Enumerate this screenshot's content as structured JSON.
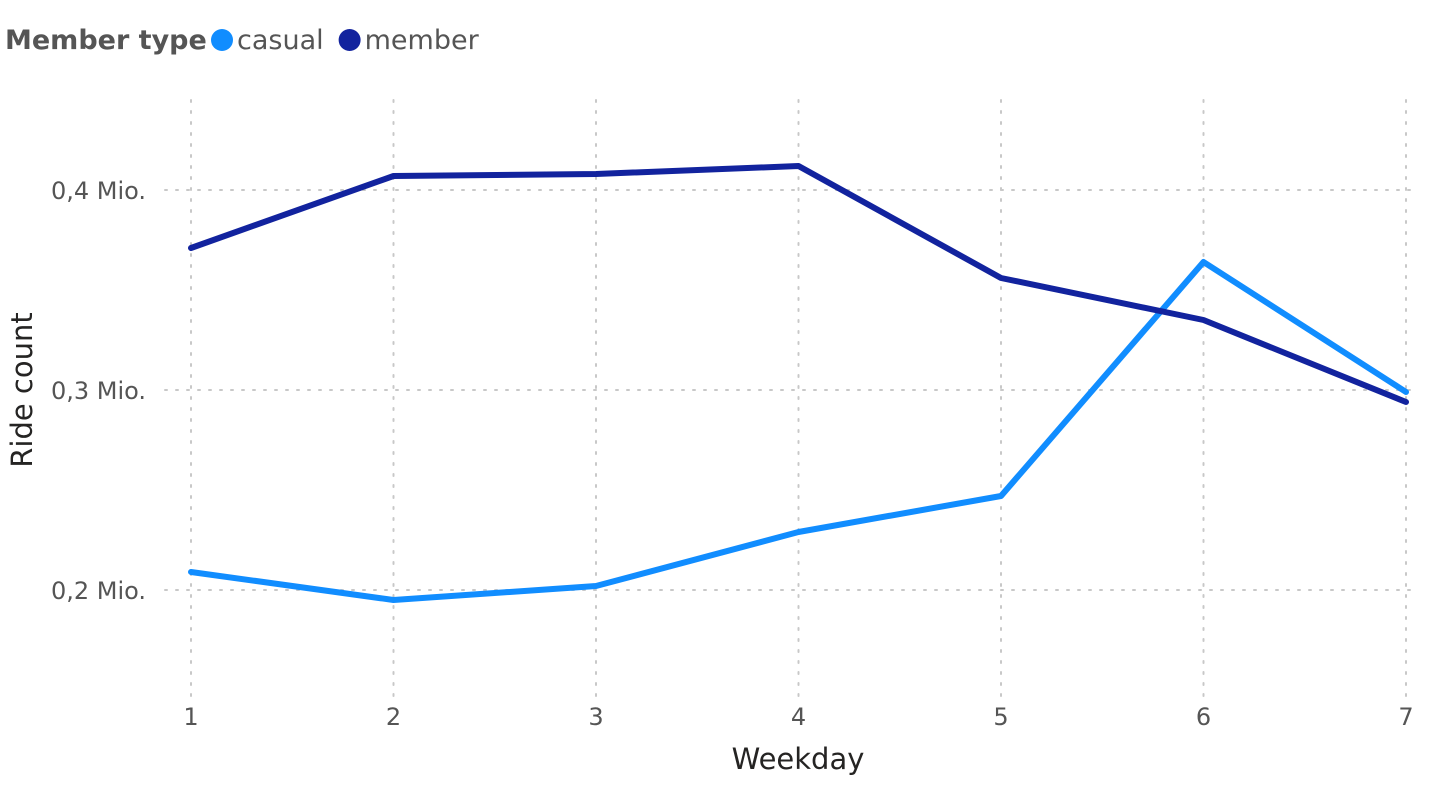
{
  "chart_data": {
    "type": "line",
    "legend": {
      "title": "Member type",
      "placement": "top-left"
    },
    "xlabel": "Weekday",
    "ylabel": "Ride count",
    "x": [
      1,
      2,
      3,
      4,
      5,
      6,
      7
    ],
    "x_tick_labels": [
      "1",
      "2",
      "3",
      "4",
      "5",
      "6",
      "7"
    ],
    "ylim": [
      0.145,
      0.445
    ],
    "y_unit": "Mio.",
    "y_ticks": [
      0.2,
      0.3,
      0.4
    ],
    "y_tick_labels": [
      "0,2 Mio.",
      "0,3 Mio.",
      "0,4 Mio."
    ],
    "grid": true,
    "series": [
      {
        "name": "casual",
        "color": "#118DFF",
        "values": [
          0.209,
          0.195,
          0.202,
          0.229,
          0.247,
          0.364,
          0.299
        ]
      },
      {
        "name": "member",
        "color": "#12239E",
        "values": [
          0.371,
          0.407,
          0.408,
          0.412,
          0.356,
          0.335,
          0.294
        ]
      }
    ]
  }
}
